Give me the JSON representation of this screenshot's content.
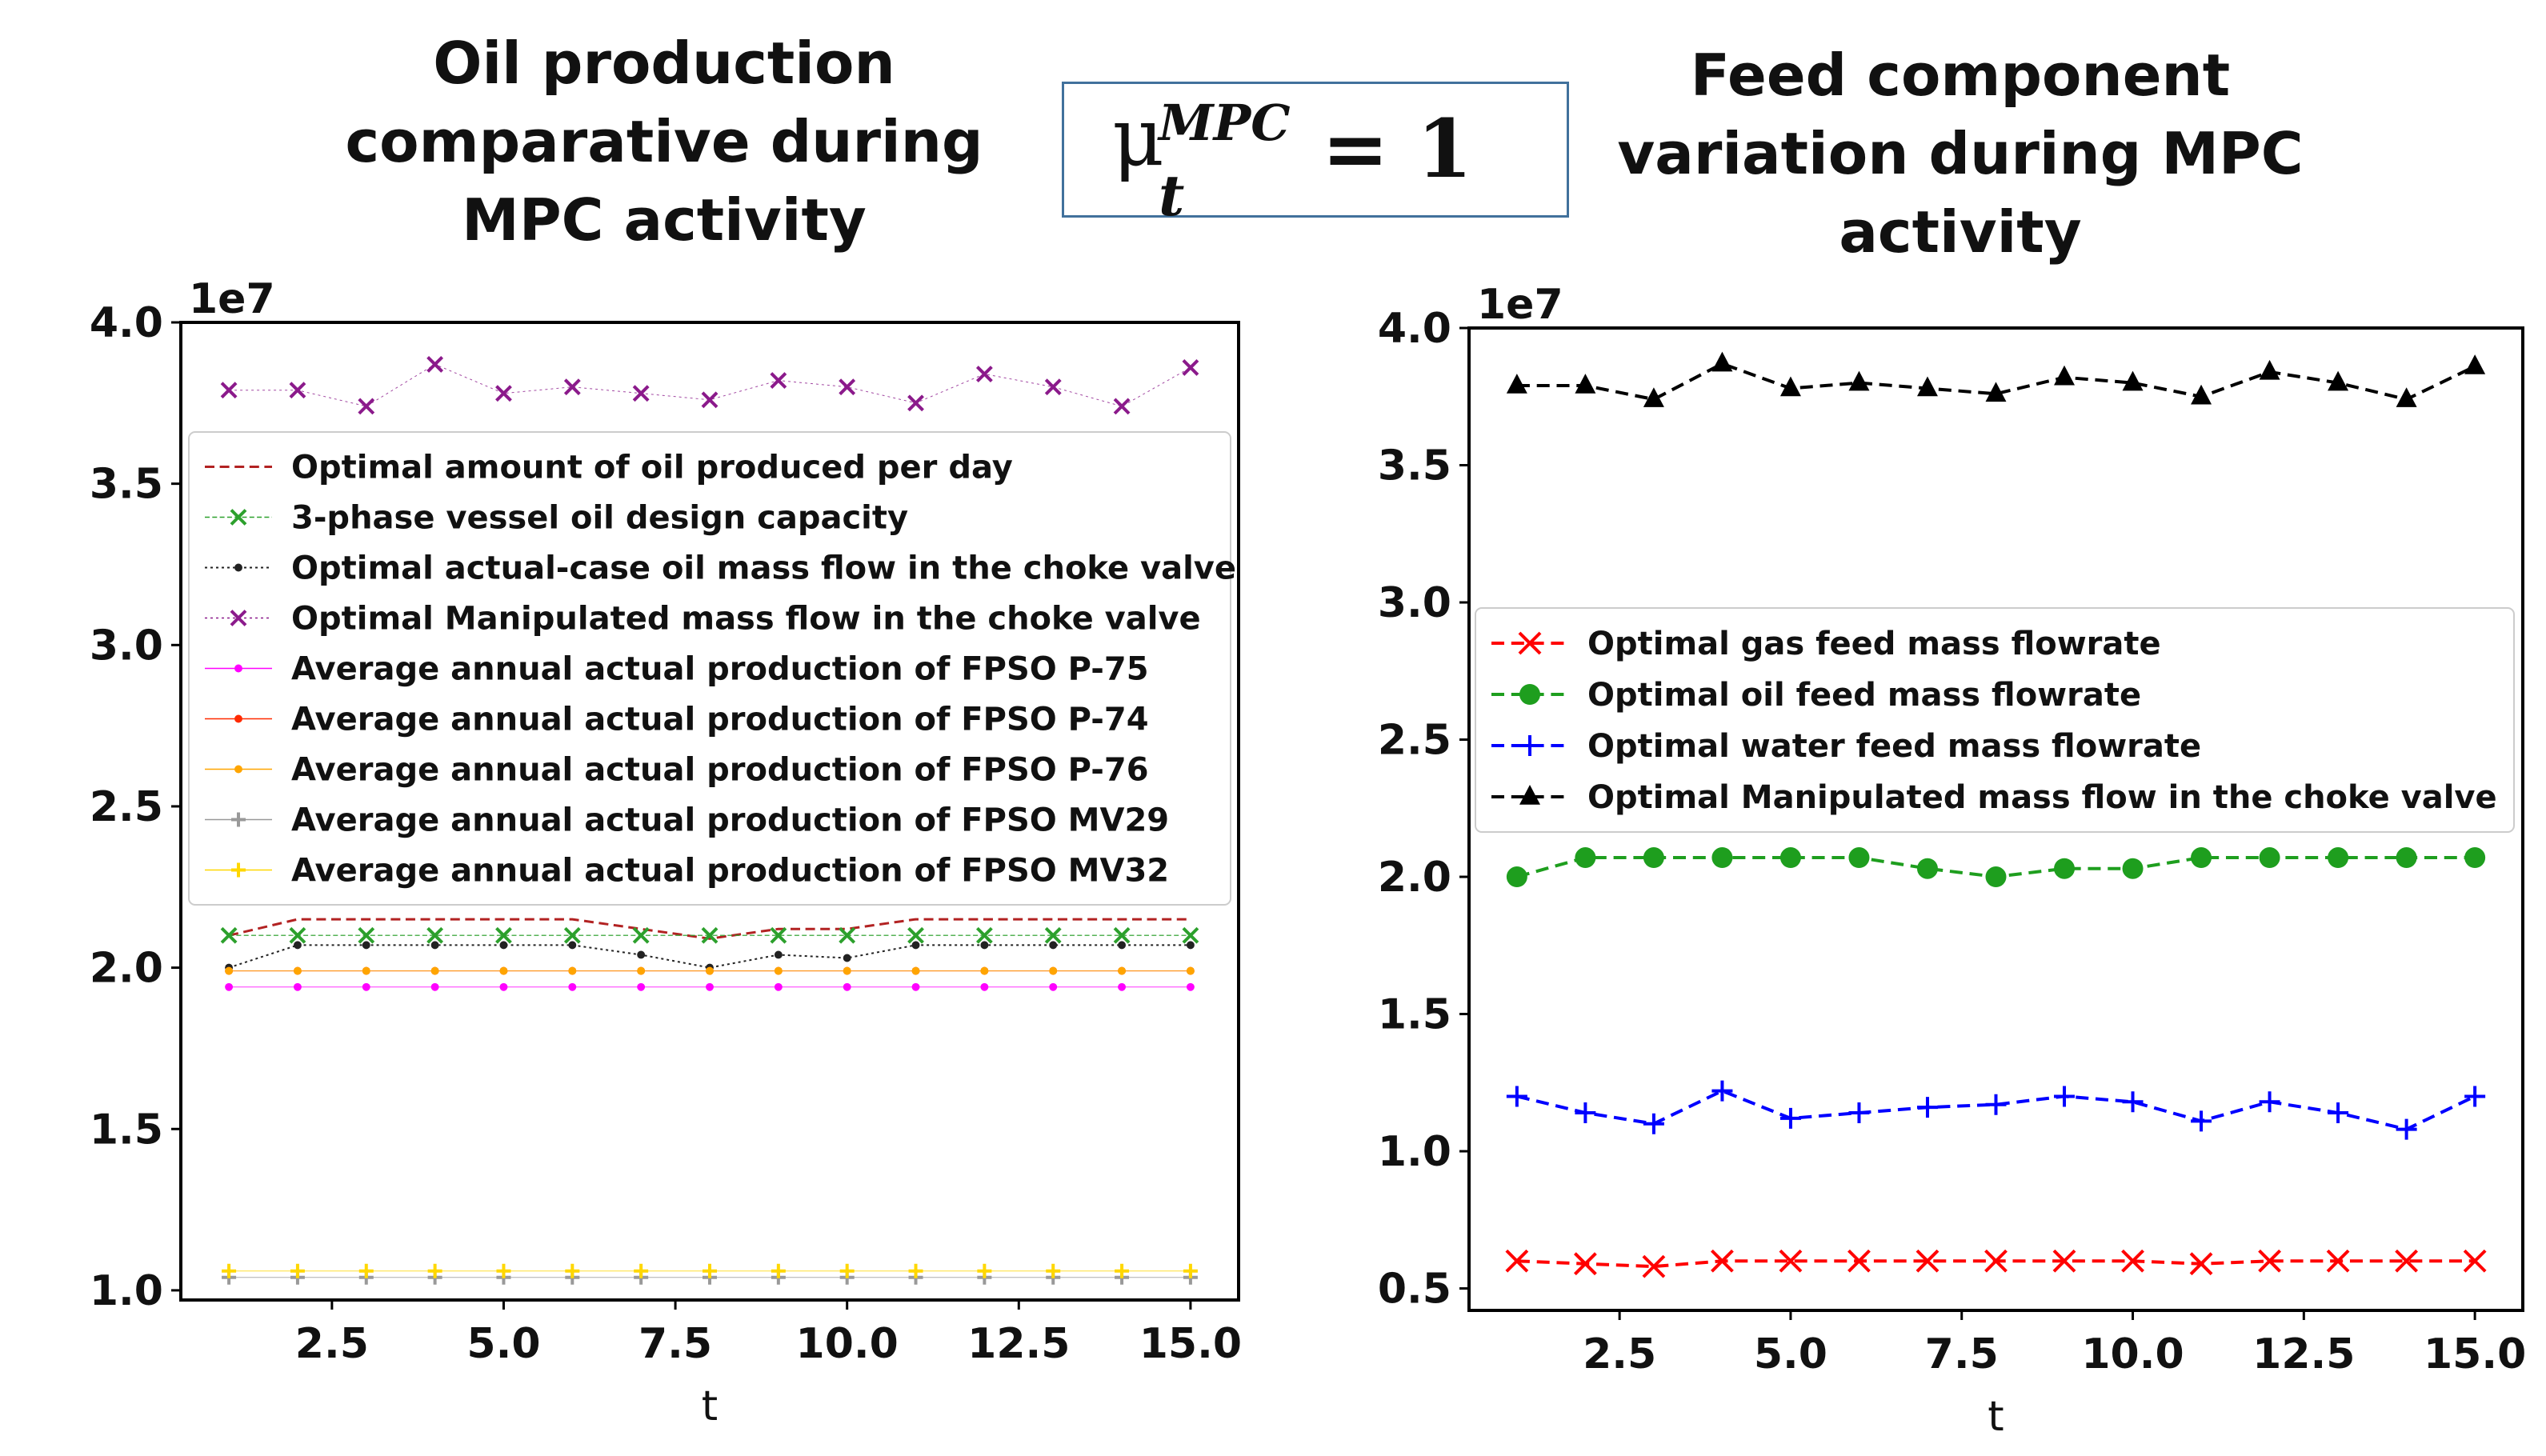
{
  "heading": {
    "left_title": "Oil production\ncomparative during\nMPC activity",
    "right_title": "Feed component\nvariation during MPC\nactivity",
    "formula": {
      "symbol": "μ",
      "superscript": "MPC",
      "subscript": "t",
      "rhs": "= 1"
    }
  },
  "colors": {
    "optimal_oil": "#b22222",
    "design_capacity": "#2ca02c",
    "actual_case": "#222222",
    "manipulated_left": "#8b1a8b",
    "p75": "#ff00ff",
    "p74": "#ff2a00",
    "p76": "#ffa500",
    "mv29": "#999999",
    "mv32": "#ffd700",
    "gas": "#ff0000",
    "oil": "#1e9e1e",
    "water": "#0000ff",
    "manipulated_right": "#000000",
    "box_border": "#41719c"
  },
  "chart_data": [
    {
      "type": "line",
      "title": "Oil production comparative during MPC activity",
      "xlabel": "t",
      "ylabel": "",
      "offset_label": "1e7",
      "xlim": [
        0.3,
        15.7
      ],
      "ylim": [
        0.97,
        4.0
      ],
      "xticks": [
        2.5,
        5.0,
        7.5,
        10.0,
        12.5,
        15.0
      ],
      "xtick_labels": [
        "2.5",
        "5.0",
        "7.5",
        "10.0",
        "12.5",
        "15.0"
      ],
      "yticks": [
        1.0,
        1.5,
        2.0,
        2.5,
        3.0,
        3.5,
        4.0
      ],
      "ytick_labels": [
        "1.0",
        "1.5",
        "2.0",
        "2.5",
        "3.0",
        "3.5",
        "4.0"
      ],
      "legend_position": "upper-center",
      "x": [
        1,
        2,
        3,
        4,
        5,
        6,
        7,
        8,
        9,
        10,
        11,
        12,
        13,
        14,
        15
      ],
      "series": [
        {
          "name": "Optimal amount of oil produced per day",
          "color_key": "optimal_oil",
          "marker": "none",
          "dash": "dashed",
          "width": 3,
          "values": [
            2.1,
            2.15,
            2.15,
            2.15,
            2.15,
            2.15,
            2.12,
            2.09,
            2.12,
            2.12,
            2.15,
            2.15,
            2.15,
            2.15,
            2.15
          ]
        },
        {
          "name": "3-phase vessel oil design capacity",
          "color_key": "design_capacity",
          "marker": "x",
          "dash": "dashed",
          "width": 1.5,
          "values": [
            2.1,
            2.1,
            2.1,
            2.1,
            2.1,
            2.1,
            2.1,
            2.1,
            2.1,
            2.1,
            2.1,
            2.1,
            2.1,
            2.1,
            2.1
          ]
        },
        {
          "name": "Optimal actual-case oil mass flow in the choke valve",
          "color_key": "actual_case",
          "marker": "dot",
          "dash": "dotted",
          "width": 2,
          "values": [
            2.0,
            2.07,
            2.07,
            2.07,
            2.07,
            2.07,
            2.04,
            2.0,
            2.04,
            2.03,
            2.07,
            2.07,
            2.07,
            2.07,
            2.07
          ]
        },
        {
          "name": "Optimal Manipulated mass flow in the choke valve",
          "color_key": "manipulated_left",
          "marker": "x",
          "dash": "dotted",
          "width": 1,
          "values": [
            3.79,
            3.79,
            3.74,
            3.87,
            3.78,
            3.8,
            3.78,
            3.76,
            3.82,
            3.8,
            3.75,
            3.84,
            3.8,
            3.74,
            3.86
          ]
        },
        {
          "name": "Average annual actual production of FPSO P-75",
          "color_key": "p75",
          "marker": "dot",
          "dash": "solid",
          "width": 1,
          "values": [
            1.94,
            1.94,
            1.94,
            1.94,
            1.94,
            1.94,
            1.94,
            1.94,
            1.94,
            1.94,
            1.94,
            1.94,
            1.94,
            1.94,
            1.94
          ]
        },
        {
          "name": "Average annual actual production of FPSO P-74",
          "color_key": "p74",
          "marker": "dot",
          "dash": "solid",
          "width": 1,
          "values": [
            1.99,
            1.99,
            1.99,
            1.99,
            1.99,
            1.99,
            1.99,
            1.99,
            1.99,
            1.99,
            1.99,
            1.99,
            1.99,
            1.99,
            1.99
          ]
        },
        {
          "name": "Average annual actual production of FPSO P-76",
          "color_key": "p76",
          "marker": "dot",
          "dash": "solid",
          "width": 1,
          "values": [
            1.99,
            1.99,
            1.99,
            1.99,
            1.99,
            1.99,
            1.99,
            1.99,
            1.99,
            1.99,
            1.99,
            1.99,
            1.99,
            1.99,
            1.99
          ]
        },
        {
          "name": "Average annual actual production of FPSO MV29",
          "color_key": "mv29",
          "marker": "plus",
          "dash": "solid",
          "width": 1,
          "values": [
            1.04,
            1.04,
            1.04,
            1.04,
            1.04,
            1.04,
            1.04,
            1.04,
            1.04,
            1.04,
            1.04,
            1.04,
            1.04,
            1.04,
            1.04
          ]
        },
        {
          "name": "Average annual actual production of FPSO MV32",
          "color_key": "mv32",
          "marker": "plus",
          "dash": "solid",
          "width": 1,
          "values": [
            1.06,
            1.06,
            1.06,
            1.06,
            1.06,
            1.06,
            1.06,
            1.06,
            1.06,
            1.06,
            1.06,
            1.06,
            1.06,
            1.06,
            1.06
          ]
        }
      ]
    },
    {
      "type": "line",
      "title": "Feed component variation during MPC activity",
      "xlabel": "t",
      "ylabel": "",
      "offset_label": "1e7",
      "xlim": [
        0.3,
        15.7
      ],
      "ylim": [
        0.42,
        4.0
      ],
      "xticks": [
        2.5,
        5.0,
        7.5,
        10.0,
        12.5,
        15.0
      ],
      "xtick_labels": [
        "2.5",
        "5.0",
        "7.5",
        "10.0",
        "12.5",
        "15.0"
      ],
      "yticks": [
        0.5,
        1.0,
        1.5,
        2.0,
        2.5,
        3.0,
        3.5,
        4.0
      ],
      "ytick_labels": [
        "0.5",
        "1.0",
        "1.5",
        "2.0",
        "2.5",
        "3.0",
        "3.5",
        "4.0"
      ],
      "legend_position": "center-right",
      "x": [
        1,
        2,
        3,
        4,
        5,
        6,
        7,
        8,
        9,
        10,
        11,
        12,
        13,
        14,
        15
      ],
      "series": [
        {
          "name": "Optimal gas feed mass flowrate",
          "color_key": "gas",
          "marker": "x",
          "dash": "dashed",
          "width": 4,
          "values": [
            0.6,
            0.59,
            0.58,
            0.6,
            0.6,
            0.6,
            0.6,
            0.6,
            0.6,
            0.6,
            0.59,
            0.6,
            0.6,
            0.6,
            0.6
          ]
        },
        {
          "name": "Optimal oil feed mass flowrate",
          "color_key": "oil",
          "marker": "circle",
          "dash": "dashed",
          "width": 4,
          "values": [
            2.0,
            2.07,
            2.07,
            2.07,
            2.07,
            2.07,
            2.03,
            2.0,
            2.03,
            2.03,
            2.07,
            2.07,
            2.07,
            2.07,
            2.07
          ]
        },
        {
          "name": "Optimal water feed mass flowrate",
          "color_key": "water",
          "marker": "plus",
          "dash": "dashed",
          "width": 4,
          "values": [
            1.2,
            1.14,
            1.1,
            1.22,
            1.12,
            1.14,
            1.16,
            1.17,
            1.2,
            1.18,
            1.11,
            1.18,
            1.14,
            1.08,
            1.2
          ]
        },
        {
          "name": "Optimal Manipulated mass flow in the choke valve",
          "color_key": "manipulated_right",
          "marker": "triangle",
          "dash": "dashed",
          "width": 4,
          "values": [
            3.79,
            3.79,
            3.74,
            3.87,
            3.78,
            3.8,
            3.78,
            3.76,
            3.82,
            3.8,
            3.75,
            3.84,
            3.8,
            3.74,
            3.86
          ]
        }
      ]
    }
  ]
}
